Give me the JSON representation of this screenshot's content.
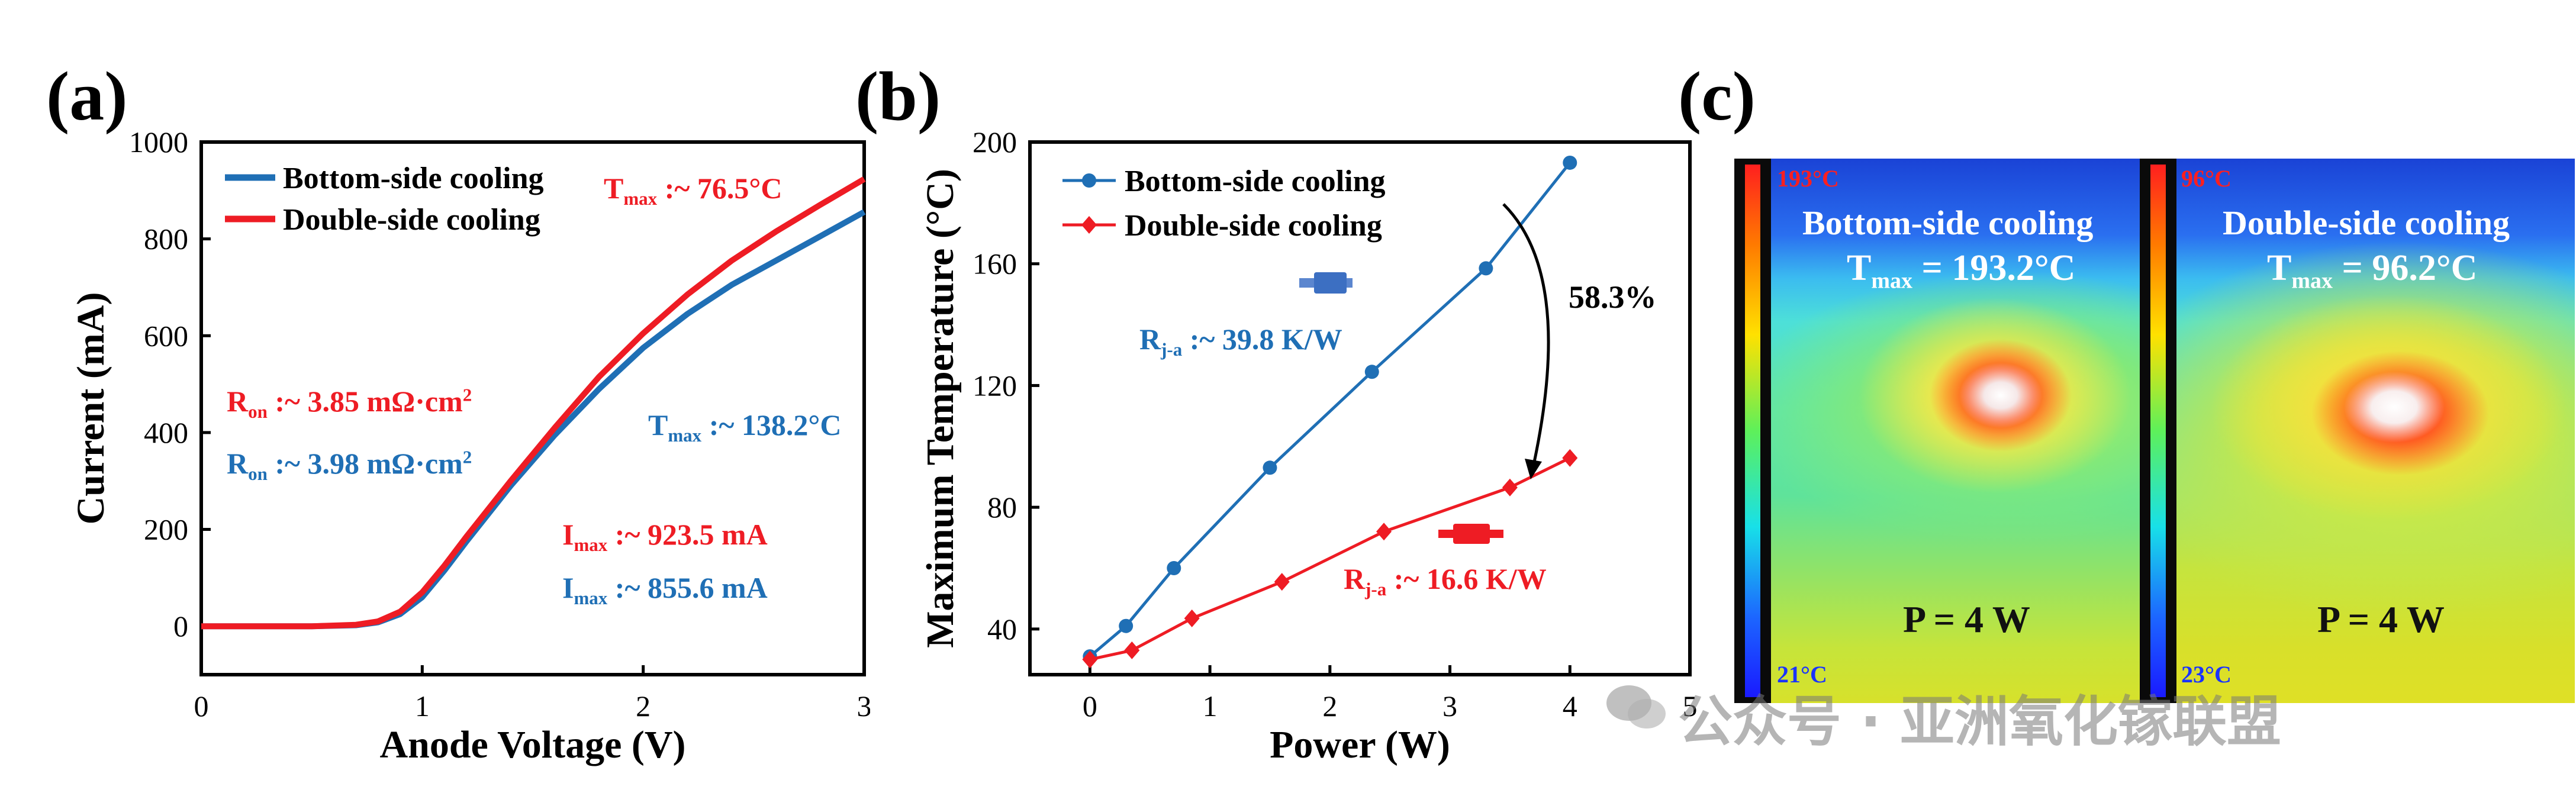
{
  "panel_labels": {
    "a": "(a)",
    "b": "(b)",
    "c": "(c)"
  },
  "chart_data": [
    {
      "type": "line",
      "panel": "(a)",
      "xlabel": "Anode Voltage (V)",
      "ylabel": "Current (mA)",
      "xlim": [
        0,
        3
      ],
      "ylim": [
        -100,
        1000
      ],
      "xticks": [
        0,
        1,
        2,
        3
      ],
      "yticks": [
        0,
        200,
        400,
        600,
        800,
        1000
      ],
      "legend": "top-left",
      "series": [
        {
          "name": "Bottom-side cooling",
          "color": "#1f6fb5",
          "x": [
            0,
            0.5,
            0.7,
            0.8,
            0.9,
            1.0,
            1.1,
            1.2,
            1.4,
            1.6,
            1.8,
            2.0,
            2.2,
            2.4,
            2.6,
            2.8,
            3.0
          ],
          "y": [
            0,
            0,
            2,
            8,
            25,
            60,
            115,
            175,
            290,
            395,
            490,
            575,
            645,
            705,
            755,
            805,
            855.6
          ]
        },
        {
          "name": "Double-side cooling",
          "color": "#ee1c24",
          "x": [
            0,
            0.5,
            0.7,
            0.8,
            0.9,
            1.0,
            1.1,
            1.2,
            1.4,
            1.6,
            1.8,
            2.0,
            2.2,
            2.4,
            2.6,
            2.8,
            3.0
          ],
          "y": [
            0,
            0,
            3,
            10,
            30,
            70,
            125,
            185,
            300,
            410,
            515,
            605,
            685,
            755,
            815,
            870,
            923.5
          ]
        }
      ],
      "annotations": [
        {
          "main": "T",
          "sub": "max",
          "rest": " :~ 76.5°C",
          "color": "#ee1c24"
        },
        {
          "main": "T",
          "sub": "max",
          "rest": " :~ 138.2°C",
          "color": "#1f6fb5"
        },
        {
          "main": "R",
          "sub": "on",
          "rest": " :~ 3.85 mΩ·cm",
          "sup": "2",
          "color": "#ee1c24"
        },
        {
          "main": "R",
          "sub": "on",
          "rest": " :~ 3.98 mΩ·cm",
          "sup": "2",
          "color": "#1f6fb5"
        },
        {
          "main": "I",
          "sub": "max",
          "rest": " :~ 923.5 mA",
          "color": "#ee1c24"
        },
        {
          "main": "I",
          "sub": "max",
          "rest": " :~ 855.6 mA",
          "color": "#1f6fb5"
        }
      ]
    },
    {
      "type": "line",
      "panel": "(b)",
      "xlabel": "Power (W)",
      "ylabel": "Maximum Temperature (°C)",
      "xlim": [
        -0.5,
        5
      ],
      "ylim": [
        25,
        200
      ],
      "xticks": [
        0,
        1,
        2,
        3,
        4,
        5
      ],
      "yticks": [
        40,
        80,
        120,
        160,
        200
      ],
      "legend": "top-left",
      "series": [
        {
          "name": "Bottom-side cooling",
          "color": "#1f6fb5",
          "marker": "circle",
          "x": [
            0,
            0.3,
            0.7,
            1.5,
            2.35,
            3.3,
            4.0
          ],
          "y": [
            31,
            41,
            60,
            93,
            124.5,
            158.5,
            193.2
          ]
        },
        {
          "name": "Double-side cooling",
          "color": "#ee1c24",
          "marker": "diamond",
          "x": [
            0,
            0.35,
            0.85,
            1.6,
            2.45,
            3.5,
            4.0
          ],
          "y": [
            30,
            33,
            43.5,
            55.5,
            72,
            86.5,
            96.2
          ]
        }
      ],
      "annotations": [
        {
          "main": "R",
          "sub": "j-a",
          "rest": " :~ 39.8 K/W",
          "color": "#1f6fb5"
        },
        {
          "main": "R",
          "sub": "j-a",
          "rest": " :~ 16.6 K/W",
          "color": "#ee1c24"
        },
        {
          "text": "58.3%",
          "color": "#000000"
        }
      ]
    }
  ],
  "thermal": {
    "left": {
      "title": "Bottom-side cooling",
      "tmax_main": "T",
      "tmax_sub": "max",
      "tmax_rest": " = 193.2°C",
      "power": "P = 4 W",
      "cb_max": "193°C",
      "cb_min": "21°C"
    },
    "right": {
      "title": "Double-side cooling",
      "tmax_main": "T",
      "tmax_sub": "max",
      "tmax_rest": " = 96.2°C",
      "power": "P = 4 W",
      "cb_max": "96°C",
      "cb_min": "23°C"
    }
  },
  "watermark": "公众号 · 亚洲氧化镓联盟"
}
